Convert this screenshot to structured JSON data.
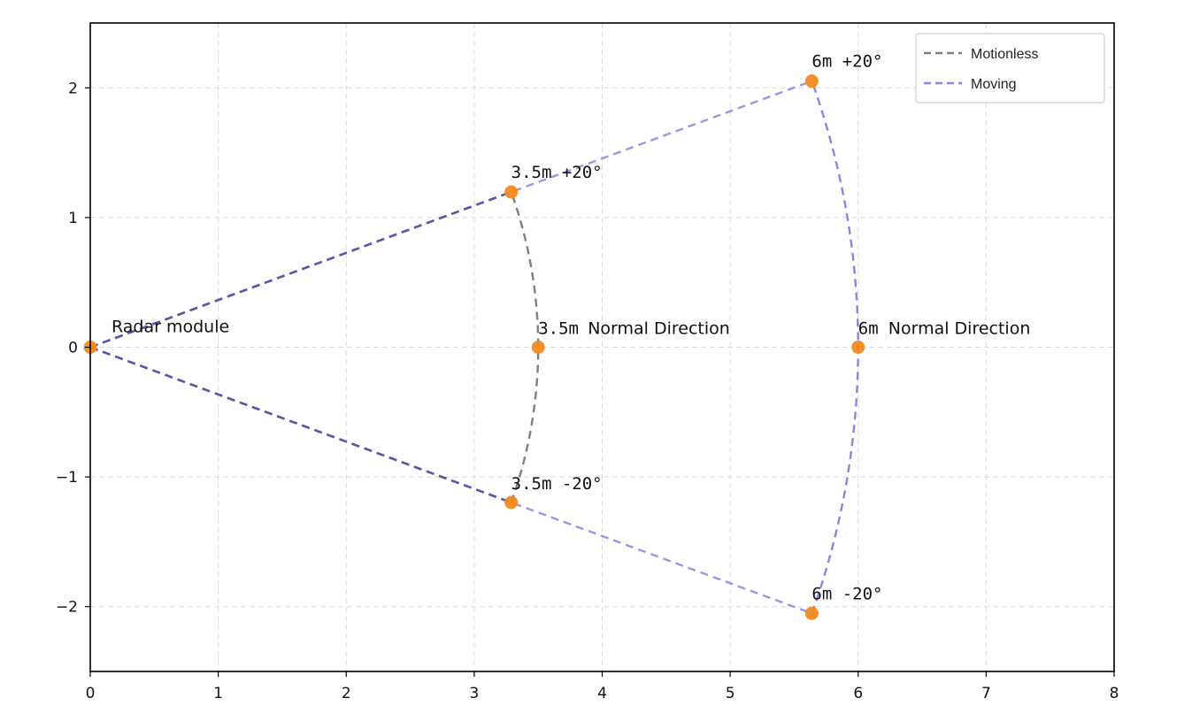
{
  "chart_data": {
    "type": "line",
    "title": "",
    "xlabel": "",
    "ylabel": "",
    "xlim": [
      0,
      8
    ],
    "ylim": [
      -2.5,
      2.5
    ],
    "xticks": [
      0,
      1,
      2,
      3,
      4,
      5,
      6,
      7,
      8
    ],
    "yticks": [
      -2,
      -1,
      0,
      1,
      2
    ],
    "ytick_labels": [
      "−2",
      "−1",
      "0",
      "1",
      "2"
    ],
    "grid": true,
    "legend": {
      "placement": "top-right"
    },
    "colors": {
      "motionless": "#7f7f7f",
      "moving": "#8a86e0",
      "points": "#f28a1e",
      "overlap": "#5a58a8"
    },
    "series": [
      {
        "name": "Motionless",
        "range_m": 3.5,
        "angle_deg": 20,
        "lines": [
          [
            [
              0,
              0
            ],
            [
              3.289,
              1.197
            ]
          ],
          [
            [
              0,
              0
            ],
            [
              3.289,
              -1.197
            ]
          ]
        ]
      },
      {
        "name": "Moving",
        "range_m": 6,
        "angle_deg": 20,
        "lines": [
          [
            [
              0,
              0
            ],
            [
              5.638,
              2.052
            ]
          ],
          [
            [
              0,
              0
            ],
            [
              5.638,
              -2.052
            ]
          ]
        ]
      }
    ],
    "points": [
      {
        "x": 0,
        "y": 0
      },
      {
        "x": 3.289,
        "y": 1.197
      },
      {
        "x": 3.5,
        "y": 0
      },
      {
        "x": 3.289,
        "y": -1.197
      },
      {
        "x": 5.638,
        "y": 2.052
      },
      {
        "x": 6,
        "y": 0
      },
      {
        "x": 5.638,
        "y": -2.052
      }
    ],
    "annotations": [
      {
        "text": "Radar module",
        "x": 0,
        "y": 0,
        "font": "sans"
      },
      {
        "text": "3.5m  +20°",
        "x": 3.289,
        "y": 1.197,
        "font": "mono"
      },
      {
        "text": "3.5m",
        "x": 3.5,
        "y": 0,
        "font": "mono"
      },
      {
        "text": "Normal Direction",
        "x": 3.5,
        "y": 0,
        "font": "sans"
      },
      {
        "text": "3.5m  -20°",
        "x": 3.289,
        "y": -1.197,
        "font": "mono"
      },
      {
        "text": "6m  +20°",
        "x": 5.638,
        "y": 2.052,
        "font": "mono"
      },
      {
        "text": "6m",
        "x": 6,
        "y": 0,
        "font": "mono"
      },
      {
        "text": "Normal Direction",
        "x": 6,
        "y": 0,
        "font": "sans"
      },
      {
        "text": "6m  -20°",
        "x": 5.638,
        "y": -2.052,
        "font": "mono"
      }
    ]
  }
}
